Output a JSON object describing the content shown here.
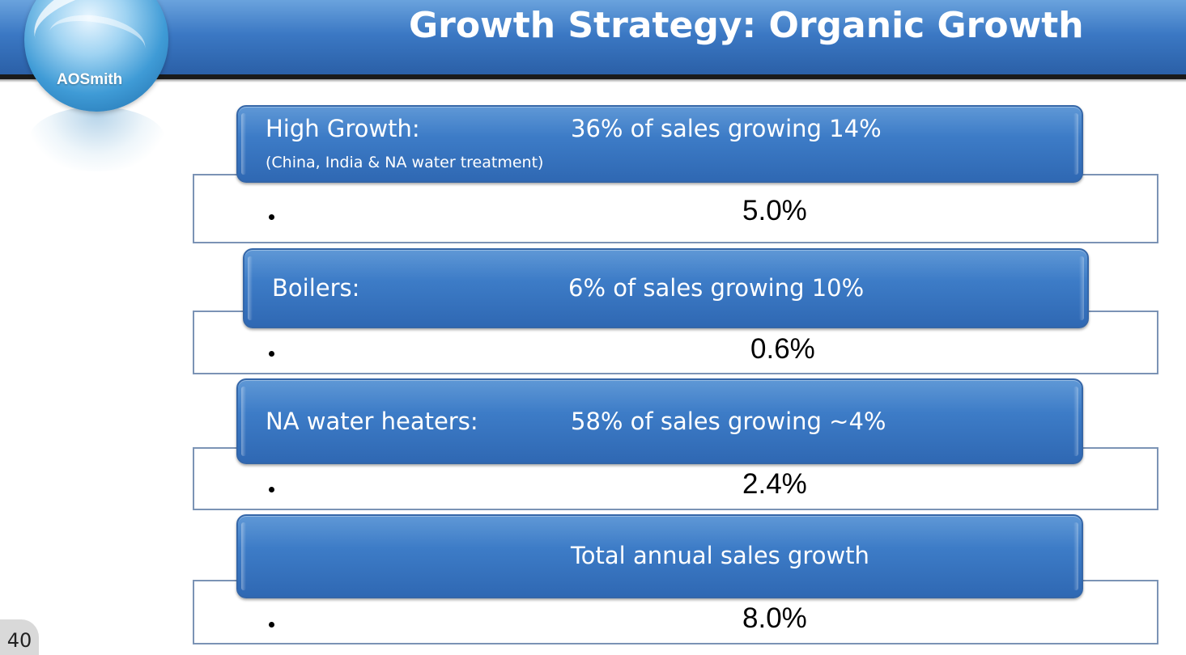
{
  "slide": {
    "title": "Growth Strategy: Organic Growth",
    "logo_text": "AOSmith",
    "page_number": "40"
  },
  "segments": [
    {
      "label": "High Growth:",
      "sublabel": "(China, India & NA water treatment)",
      "description": "36% of sales growing 14%",
      "contribution": "5.0%"
    },
    {
      "label": "Boilers:",
      "description": "6% of sales growing 10%",
      "contribution": "0.6%"
    },
    {
      "label": "NA water heaters:",
      "description": "58% of sales growing ~4%",
      "contribution": "2.4%"
    },
    {
      "label": "",
      "description": "Total annual sales growth",
      "contribution": "8.0%"
    }
  ],
  "colors": {
    "header_blue": "#3b78c4",
    "bar_blue": "#3d7cc7",
    "panel_border": "#7b93b5"
  }
}
